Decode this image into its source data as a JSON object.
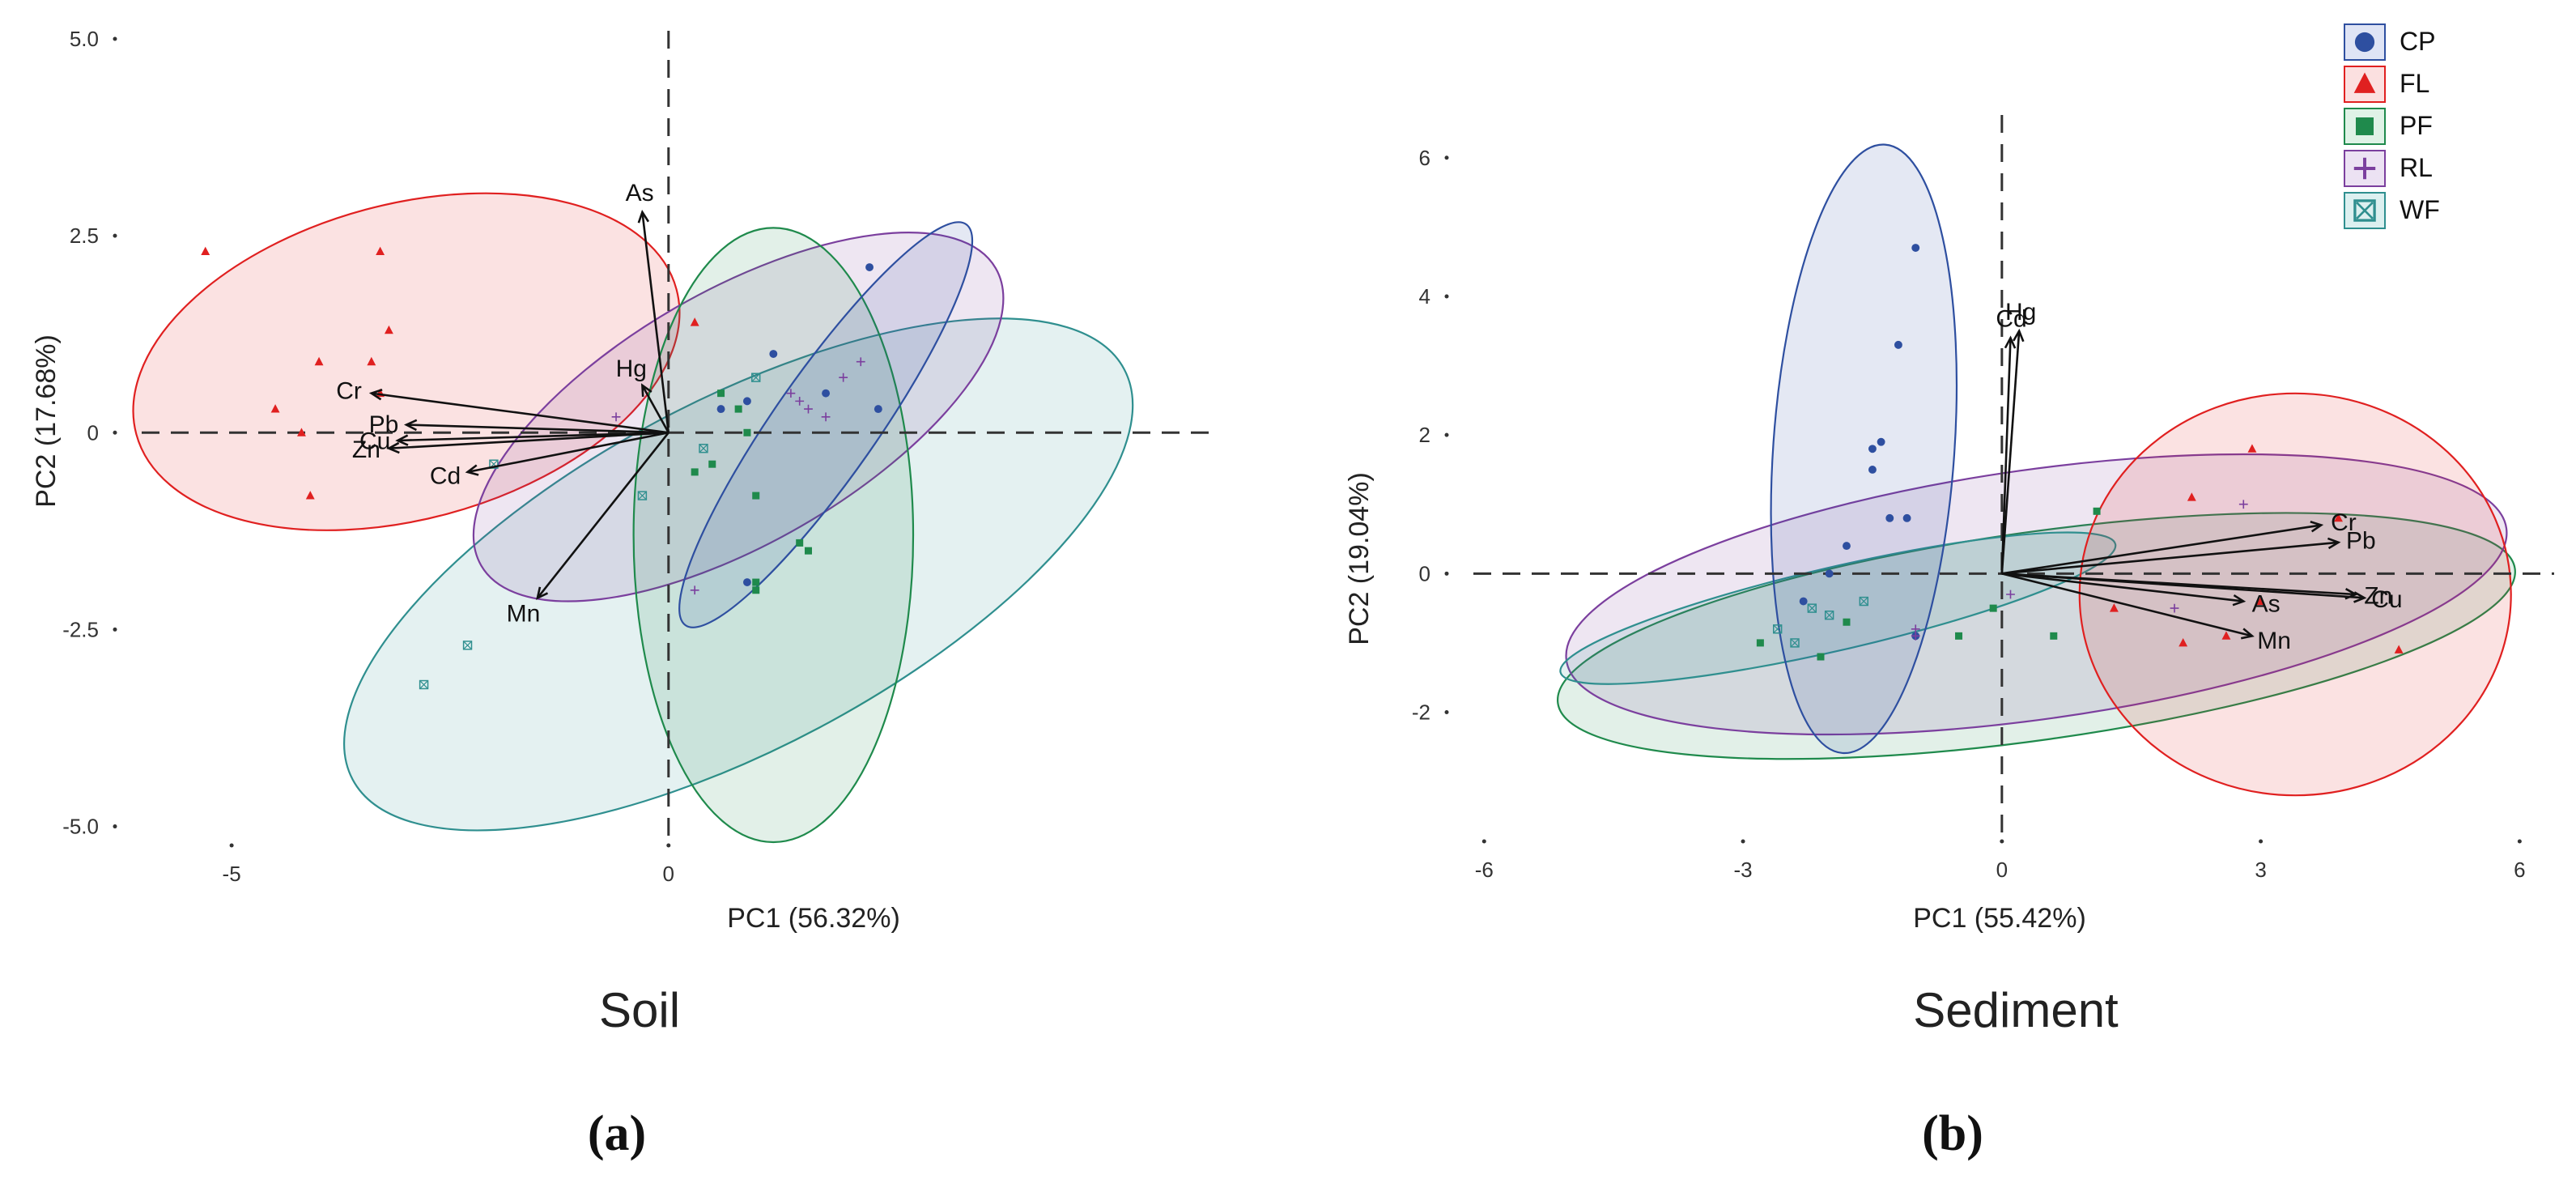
{
  "figure": {
    "panel_a_tag": "(a)",
    "panel_b_tag": "(b)"
  },
  "legend": {
    "items": [
      {
        "label": "CP",
        "marker": "circle-icon",
        "color": "#2e4fa0",
        "fill": "#dfe4f5"
      },
      {
        "label": "FL",
        "marker": "triangle-icon",
        "color": "#e02020",
        "fill": "#fbe0e0"
      },
      {
        "label": "PF",
        "marker": "square-icon",
        "color": "#1f8a4c",
        "fill": "#dff2e6"
      },
      {
        "label": "RL",
        "marker": "cross-icon",
        "color": "#7b3f9e",
        "fill": "#ece2f3"
      },
      {
        "label": "WF",
        "marker": "boxed-x-icon",
        "color": "#2f8f8f",
        "fill": "#dcf0f0"
      }
    ]
  },
  "chart_data": [
    {
      "type": "scatter",
      "subtitle": "Soil",
      "xlabel": "PC1 (56.32%)",
      "ylabel": "PC2 (17.68%)",
      "xlim": [
        -6.4,
        6.2
      ],
      "ylim": [
        -5.2,
        5.0
      ],
      "xticks": [
        {
          "v": -5,
          "label": "-5"
        },
        {
          "v": 0,
          "label": "0"
        }
      ],
      "yticks": [
        {
          "v": 5,
          "label": "5.0"
        },
        {
          "v": 2.5,
          "label": "2.5"
        },
        {
          "v": 0,
          "label": "0"
        },
        {
          "v": -2.5,
          "label": "-2.5"
        },
        {
          "v": -5,
          "label": "-5.0"
        }
      ],
      "ellipses": [
        {
          "group": "FL",
          "cx": -3.0,
          "cy": 0.9,
          "rx": 3.2,
          "ry": 2.0,
          "angle": -15
        },
        {
          "group": "WF",
          "cx": 0.8,
          "cy": -1.8,
          "rx": 5.0,
          "ry": 2.2,
          "angle": -28
        },
        {
          "group": "RL",
          "cx": 0.8,
          "cy": 0.2,
          "rx": 3.4,
          "ry": 1.6,
          "angle": -30
        },
        {
          "group": "PF",
          "cx": 1.2,
          "cy": -1.3,
          "rx": 1.6,
          "ry": 3.9,
          "angle": 0
        },
        {
          "group": "CP",
          "cx": 1.8,
          "cy": 0.1,
          "rx": 2.8,
          "ry": 0.65,
          "angle": -55
        }
      ],
      "loadings": [
        {
          "label": "As",
          "x": -0.3,
          "y": 2.8
        },
        {
          "label": "Hg",
          "x": -0.3,
          "y": 0.6
        },
        {
          "label": "Cr",
          "x": -3.4,
          "y": 0.5
        },
        {
          "label": "Pb",
          "x": -3.0,
          "y": 0.1
        },
        {
          "label": "Cu",
          "x": -3.1,
          "y": -0.1
        },
        {
          "label": "Zn",
          "x": -3.2,
          "y": -0.2
        },
        {
          "label": "Cd",
          "x": -2.3,
          "y": -0.5
        },
        {
          "label": "Mn",
          "x": -1.5,
          "y": -2.1
        }
      ],
      "points": [
        {
          "g": "FL",
          "x": -5.3,
          "y": 2.3
        },
        {
          "g": "FL",
          "x": -3.3,
          "y": 2.3
        },
        {
          "g": "FL",
          "x": -3.2,
          "y": 1.3
        },
        {
          "g": "FL",
          "x": -3.4,
          "y": 0.9
        },
        {
          "g": "FL",
          "x": -4.0,
          "y": 0.9
        },
        {
          "g": "FL",
          "x": -4.5,
          "y": 0.3
        },
        {
          "g": "FL",
          "x": -4.2,
          "y": 0.0
        },
        {
          "g": "FL",
          "x": -4.1,
          "y": -0.8
        },
        {
          "g": "FL",
          "x": 0.3,
          "y": 1.4
        },
        {
          "g": "FL",
          "x": -3.3,
          "y": 0.5
        },
        {
          "g": "WF",
          "x": -2.8,
          "y": -3.2
        },
        {
          "g": "WF",
          "x": -2.3,
          "y": -2.7
        },
        {
          "g": "WF",
          "x": -0.3,
          "y": -0.8
        },
        {
          "g": "WF",
          "x": 1.0,
          "y": 0.7
        },
        {
          "g": "WF",
          "x": 0.4,
          "y": -0.2
        },
        {
          "g": "WF",
          "x": -2.0,
          "y": -0.4
        },
        {
          "g": "PF",
          "x": 1.0,
          "y": -0.8
        },
        {
          "g": "PF",
          "x": 1.5,
          "y": -1.4
        },
        {
          "g": "PF",
          "x": 1.6,
          "y": -1.5
        },
        {
          "g": "PF",
          "x": 1.0,
          "y": -1.9
        },
        {
          "g": "PF",
          "x": 1.0,
          "y": -2.0
        },
        {
          "g": "PF",
          "x": 0.5,
          "y": -0.4
        },
        {
          "g": "PF",
          "x": 0.8,
          "y": 0.3
        },
        {
          "g": "PF",
          "x": 0.6,
          "y": 0.5
        },
        {
          "g": "PF",
          "x": 0.9,
          "y": 0.0
        },
        {
          "g": "PF",
          "x": 0.3,
          "y": -0.5
        },
        {
          "g": "CP",
          "x": 0.9,
          "y": 0.4
        },
        {
          "g": "CP",
          "x": 2.3,
          "y": 2.1
        },
        {
          "g": "CP",
          "x": 1.2,
          "y": 1.0
        },
        {
          "g": "CP",
          "x": 2.4,
          "y": 0.3
        },
        {
          "g": "CP",
          "x": 0.6,
          "y": 0.3
        },
        {
          "g": "CP",
          "x": 1.8,
          "y": 0.5
        },
        {
          "g": "CP",
          "x": 0.9,
          "y": -1.9
        },
        {
          "g": "RL",
          "x": 1.5,
          "y": 0.4
        },
        {
          "g": "RL",
          "x": 1.6,
          "y": 0.3
        },
        {
          "g": "RL",
          "x": 1.8,
          "y": 0.2
        },
        {
          "g": "RL",
          "x": 2.0,
          "y": 0.7
        },
        {
          "g": "RL",
          "x": 2.2,
          "y": 0.9
        },
        {
          "g": "RL",
          "x": 0.3,
          "y": -2.0
        },
        {
          "g": "RL",
          "x": -0.6,
          "y": 0.2
        },
        {
          "g": "RL",
          "x": 1.4,
          "y": 0.5
        }
      ]
    },
    {
      "type": "scatter",
      "subtitle": "Sediment",
      "xlabel": "PC1 (55.42%)",
      "ylabel": "PC2 (19.04%)",
      "xlim": [
        -6.5,
        6.4
      ],
      "ylim": [
        -3.7,
        6.5
      ],
      "xticks": [
        {
          "v": -6,
          "label": "-6"
        },
        {
          "v": -3,
          "label": "-3"
        },
        {
          "v": 0,
          "label": "0"
        },
        {
          "v": 3,
          "label": "3"
        },
        {
          "v": 6,
          "label": "6"
        }
      ],
      "yticks": [
        {
          "v": 6,
          "label": "6"
        },
        {
          "v": 4,
          "label": "4"
        },
        {
          "v": 2,
          "label": "2"
        },
        {
          "v": 0,
          "label": "0"
        },
        {
          "v": -2,
          "label": "-2"
        }
      ],
      "ellipses": [
        {
          "group": "PF",
          "cx": 0.4,
          "cy": -0.9,
          "rx": 5.6,
          "ry": 1.5,
          "angle": -8
        },
        {
          "group": "RL",
          "cx": 0.4,
          "cy": -0.3,
          "rx": 5.5,
          "ry": 1.8,
          "angle": -8
        },
        {
          "group": "WF",
          "cx": -1.9,
          "cy": -0.5,
          "rx": 3.3,
          "ry": 0.6,
          "angle": -13
        },
        {
          "group": "FL",
          "cx": 3.4,
          "cy": -0.3,
          "rx": 2.5,
          "ry": 2.9,
          "angle": 0
        },
        {
          "group": "CP",
          "cx": -1.6,
          "cy": 1.8,
          "rx": 1.05,
          "ry": 4.4,
          "angle": 4
        }
      ],
      "loadings": [
        {
          "label": "Cd",
          "x": 0.1,
          "y": 3.4
        },
        {
          "label": "Hg",
          "x": 0.2,
          "y": 3.5
        },
        {
          "label": "Cr",
          "x": 3.7,
          "y": 0.7
        },
        {
          "label": "Pb",
          "x": 3.9,
          "y": 0.45
        },
        {
          "label": "Zn",
          "x": 4.1,
          "y": -0.3
        },
        {
          "label": "Cu",
          "x": 4.2,
          "y": -0.35
        },
        {
          "label": "As",
          "x": 2.8,
          "y": -0.4
        },
        {
          "label": "Mn",
          "x": 2.9,
          "y": -0.9
        }
      ],
      "points": [
        {
          "g": "CP",
          "x": -1.0,
          "y": 4.7
        },
        {
          "g": "CP",
          "x": -1.2,
          "y": 3.3
        },
        {
          "g": "CP",
          "x": -1.4,
          "y": 1.9
        },
        {
          "g": "CP",
          "x": -1.5,
          "y": 1.8
        },
        {
          "g": "CP",
          "x": -1.5,
          "y": 1.5
        },
        {
          "g": "CP",
          "x": -1.3,
          "y": 0.8
        },
        {
          "g": "CP",
          "x": -1.1,
          "y": 0.8
        },
        {
          "g": "CP",
          "x": -1.8,
          "y": 0.4
        },
        {
          "g": "CP",
          "x": -2.0,
          "y": 0.0
        },
        {
          "g": "CP",
          "x": -1.0,
          "y": -0.9
        },
        {
          "g": "CP",
          "x": -2.3,
          "y": -0.4
        },
        {
          "g": "FL",
          "x": 2.9,
          "y": 1.8
        },
        {
          "g": "FL",
          "x": 2.2,
          "y": 1.1
        },
        {
          "g": "FL",
          "x": 3.0,
          "y": -0.4
        },
        {
          "g": "FL",
          "x": 2.6,
          "y": -0.9
        },
        {
          "g": "FL",
          "x": 2.1,
          "y": -1.0
        },
        {
          "g": "FL",
          "x": 4.6,
          "y": -1.1
        },
        {
          "g": "FL",
          "x": 3.9,
          "y": 0.8
        },
        {
          "g": "FL",
          "x": 1.3,
          "y": -0.5
        },
        {
          "g": "PF",
          "x": 1.1,
          "y": 0.9
        },
        {
          "g": "PF",
          "x": 0.6,
          "y": -0.9
        },
        {
          "g": "PF",
          "x": -0.5,
          "y": -0.9
        },
        {
          "g": "PF",
          "x": -2.8,
          "y": -1.0
        },
        {
          "g": "PF",
          "x": -2.1,
          "y": -1.2
        },
        {
          "g": "PF",
          "x": -0.1,
          "y": -0.5
        },
        {
          "g": "PF",
          "x": -1.8,
          "y": -0.7
        },
        {
          "g": "RL",
          "x": 0.1,
          "y": -0.3
        },
        {
          "g": "RL",
          "x": 2.8,
          "y": 1.0
        },
        {
          "g": "RL",
          "x": -1.0,
          "y": -0.9
        },
        {
          "g": "RL",
          "x": -1.0,
          "y": -0.8
        },
        {
          "g": "RL",
          "x": 2.0,
          "y": -0.5
        },
        {
          "g": "WF",
          "x": -2.2,
          "y": -0.5
        },
        {
          "g": "WF",
          "x": -2.6,
          "y": -0.8
        },
        {
          "g": "WF",
          "x": -2.4,
          "y": -1.0
        },
        {
          "g": "WF",
          "x": -1.6,
          "y": -0.4
        },
        {
          "g": "WF",
          "x": -2.0,
          "y": -0.6
        }
      ]
    }
  ]
}
